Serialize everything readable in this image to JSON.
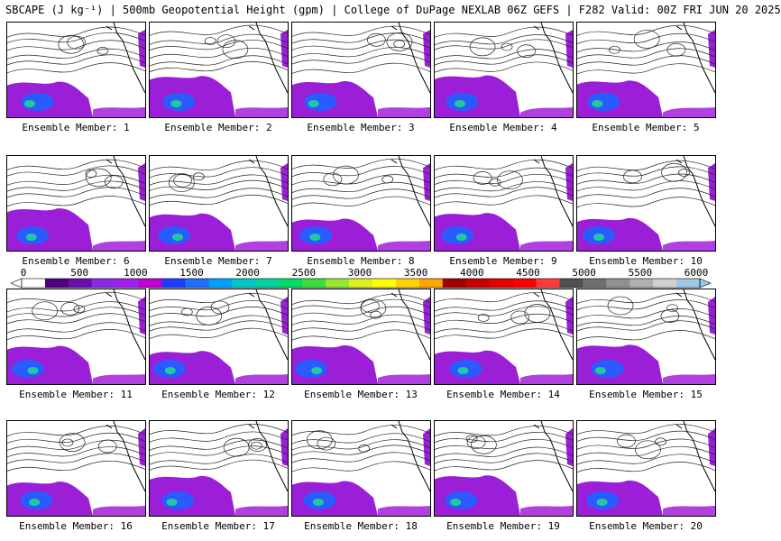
{
  "title": "SBCAPE (J kg⁻¹) | 500mb Geopotential Height (gpm) | College of DuPage NEXLAB 06Z GEFS | F282 Valid: 00Z FRI JUN 20 2025",
  "members": [
    "Ensemble Member: 1",
    "Ensemble Member: 2",
    "Ensemble Member: 3",
    "Ensemble Member: 4",
    "Ensemble Member: 5",
    "Ensemble Member: 6",
    "Ensemble Member: 7",
    "Ensemble Member: 8",
    "Ensemble Member: 9",
    "Ensemble Member: 10",
    "Ensemble Member: 11",
    "Ensemble Member: 12",
    "Ensemble Member: 13",
    "Ensemble Member: 14",
    "Ensemble Member: 15",
    "Ensemble Member: 16",
    "Ensemble Member: 17",
    "Ensemble Member: 18",
    "Ensemble Member: 19",
    "Ensemble Member: 20"
  ],
  "colorbar": {
    "ticks": [
      "0",
      "500",
      "1000",
      "1500",
      "2000",
      "2500",
      "3000",
      "3500",
      "4000",
      "4500",
      "5000",
      "5500",
      "6000"
    ],
    "colors": [
      "#ffffff",
      "#4b0082",
      "#6a0dad",
      "#8a2be2",
      "#a020f0",
      "#c000d0",
      "#1e3cff",
      "#1e6eff",
      "#00a0ff",
      "#00c8c8",
      "#00d2a0",
      "#00dc64",
      "#3cdc3c",
      "#96e632",
      "#dcf01e",
      "#ffff00",
      "#ffd200",
      "#ffa500",
      "#a00000",
      "#c80000",
      "#e60000",
      "#ff0000",
      "#ff3c3c",
      "#505050",
      "#707070",
      "#909090",
      "#b0b0b0",
      "#d0d0d0",
      "#a0c8e6"
    ]
  }
}
